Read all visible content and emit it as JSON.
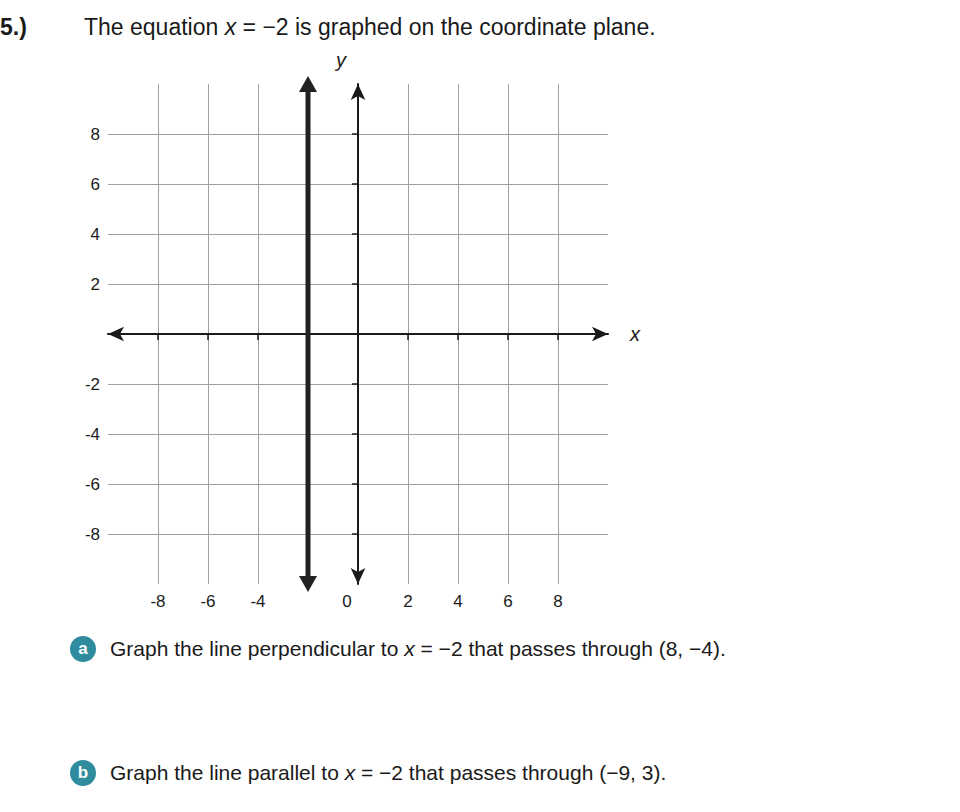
{
  "header": {
    "number": "5.)",
    "text": "The equation x = −2 is graphed on the coordinate plane."
  },
  "chart_data": {
    "type": "line",
    "x": [
      -2,
      -2
    ],
    "values": [
      10,
      -10
    ],
    "color": "#222222",
    "x_label": "x",
    "y_label": "y",
    "xlim": [
      -10,
      10
    ],
    "ylim": [
      -10,
      10
    ],
    "xticks": [
      -8,
      -6,
      -4,
      0,
      2,
      4,
      6,
      8
    ],
    "yticks": [
      -8,
      -6,
      -4,
      -2,
      2,
      4,
      6,
      8
    ],
    "grid": true
  },
  "questions": [
    {
      "letter": "a",
      "text": "Graph the line perpendicular to x = −2 that passes through (8, −4)."
    },
    {
      "letter": "b",
      "text": "Graph the line parallel to x = −2 that passes through (−9, 3)."
    }
  ]
}
